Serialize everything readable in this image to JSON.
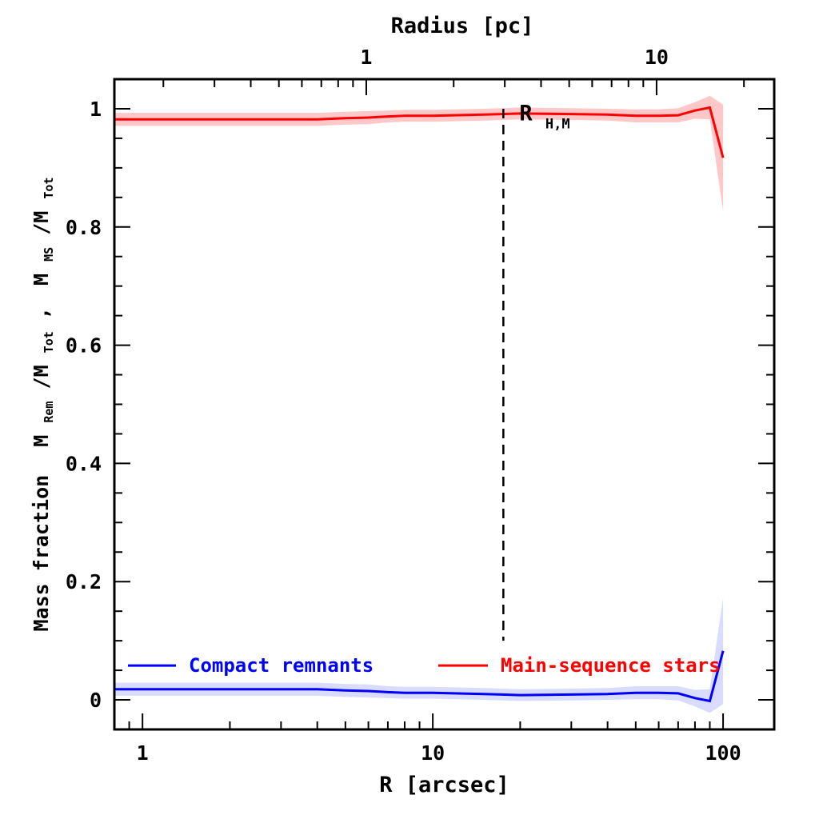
{
  "chart_data": {
    "type": "line",
    "xscale": "log",
    "x_range": [
      0.8,
      150
    ],
    "y_range": [
      -0.05,
      1.05
    ],
    "xlabel": "R [arcsec]",
    "ylabel_main": "Mass fraction",
    "ylabel_formula": {
      "rem_M": "M",
      "rem_sub": "Rem",
      "rem_div": "/M",
      "rem_tot": "Tot",
      "sep": ",",
      "ms_M": "M",
      "ms_sub": "MS",
      "ms_div": "/M",
      "ms_tot": "Tot"
    },
    "top_axis": {
      "label": "Radius [pc]",
      "scale": "log",
      "ticks": [
        {
          "value": 1,
          "label": "1",
          "at_arcsec": 5.9
        },
        {
          "value": 10,
          "label": "10",
          "at_arcsec": 59
        }
      ]
    },
    "x_tick_labels": [
      {
        "value": 1,
        "label": "1"
      },
      {
        "value": 10,
        "label": "10"
      },
      {
        "value": 100,
        "label": "100"
      }
    ],
    "y_tick_labels": [
      {
        "value": 0,
        "label": "0"
      },
      {
        "value": 0.2,
        "label": "0.2"
      },
      {
        "value": 0.4,
        "label": "0.4"
      },
      {
        "value": 0.6,
        "label": "0.6"
      },
      {
        "value": 0.8,
        "label": "0.8"
      },
      {
        "value": 1,
        "label": "1"
      }
    ],
    "vline": {
      "x": 17.5,
      "label_main": "R",
      "label_sub": "H,M",
      "style": "dashed",
      "y_range": [
        0.1,
        1.0
      ]
    },
    "grid": false,
    "legend_position": "bottom",
    "series": [
      {
        "name": "Compact remnants",
        "color": "#0000ff",
        "band_color": "#d9dcff",
        "x": [
          0.8,
          1,
          2,
          3,
          4,
          5,
          6,
          7,
          8,
          10,
          15,
          20,
          30,
          40,
          50,
          60,
          70,
          80,
          90,
          100
        ],
        "y": [
          0.018,
          0.018,
          0.018,
          0.018,
          0.018,
          0.016,
          0.015,
          0.013,
          0.012,
          0.012,
          0.01,
          0.008,
          0.009,
          0.01,
          0.012,
          0.012,
          0.011,
          0.003,
          -0.002,
          0.083
        ],
        "band_half_width": [
          0.011,
          0.011,
          0.011,
          0.011,
          0.011,
          0.011,
          0.011,
          0.01,
          0.01,
          0.01,
          0.01,
          0.01,
          0.01,
          0.01,
          0.011,
          0.011,
          0.012,
          0.014,
          0.02,
          0.09
        ]
      },
      {
        "name": "Main-sequence stars",
        "color": "#ff0000",
        "band_color": "#ffc8c8",
        "x": [
          0.8,
          1,
          2,
          3,
          4,
          5,
          6,
          7,
          8,
          10,
          15,
          20,
          30,
          40,
          50,
          60,
          70,
          80,
          90,
          100
        ],
        "y": [
          0.982,
          0.982,
          0.982,
          0.982,
          0.982,
          0.984,
          0.985,
          0.987,
          0.988,
          0.988,
          0.99,
          0.992,
          0.991,
          0.99,
          0.988,
          0.988,
          0.989,
          0.997,
          1.002,
          0.917
        ],
        "band_half_width": [
          0.011,
          0.011,
          0.011,
          0.011,
          0.011,
          0.011,
          0.011,
          0.01,
          0.01,
          0.01,
          0.01,
          0.01,
          0.01,
          0.01,
          0.011,
          0.011,
          0.012,
          0.014,
          0.02,
          0.09
        ]
      }
    ]
  }
}
